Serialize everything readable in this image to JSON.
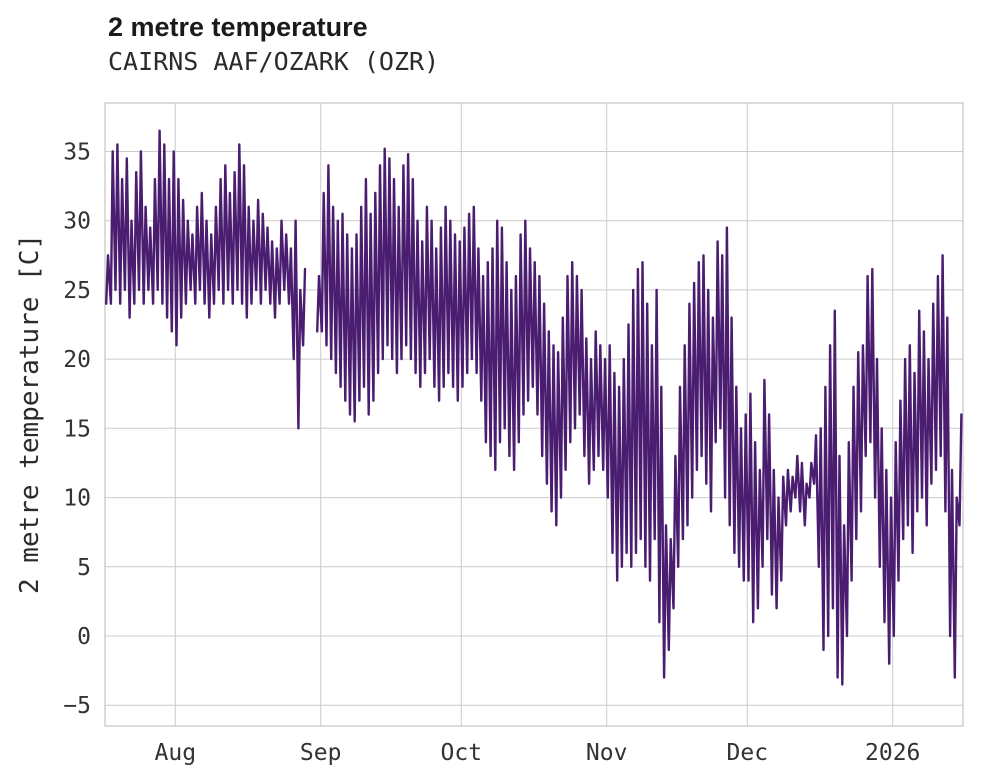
{
  "chart_data": {
    "type": "line",
    "title": "2 metre temperature",
    "subtitle": "CAIRNS AAF/OZARK (OZR)",
    "ylabel": "2 metre temperature [C]",
    "unit": "C",
    "line_color": "#4a1d70",
    "grid": true,
    "legend": "none",
    "ylim": [
      -6.5,
      38.5
    ],
    "yticks": [
      -5,
      0,
      5,
      10,
      15,
      20,
      25,
      30,
      35
    ],
    "ytick_labels": [
      "−5",
      "0",
      "5",
      "10",
      "15",
      "20",
      "25",
      "30",
      "35"
    ],
    "xtick_labels": [
      "Aug",
      "Sep",
      "Oct",
      "Nov",
      "Dec",
      "2026"
    ],
    "xtick_days": [
      15,
      46,
      76,
      107,
      137,
      168
    ],
    "x_domain_days": [
      0,
      183
    ],
    "daily_min_max": [
      [
        24,
        27.5
      ],
      [
        24,
        35
      ],
      [
        25,
        35.5
      ],
      [
        24,
        33
      ],
      [
        25,
        34.5
      ],
      [
        23,
        30
      ],
      [
        24,
        33.5
      ],
      [
        25,
        35
      ],
      [
        24,
        31
      ],
      [
        25,
        29.5
      ],
      [
        24,
        33
      ],
      [
        25,
        36.5
      ],
      [
        24,
        35.5
      ],
      [
        23,
        33
      ],
      [
        22,
        35
      ],
      [
        21,
        33
      ],
      [
        23,
        31.5
      ],
      [
        24,
        30
      ],
      [
        25,
        29
      ],
      [
        24,
        31
      ],
      [
        25,
        32
      ],
      [
        24,
        30
      ],
      [
        23,
        29
      ],
      [
        24,
        31
      ],
      [
        25,
        33
      ],
      [
        24,
        34
      ],
      [
        25,
        32
      ],
      [
        24,
        33.5
      ],
      [
        25,
        35.5
      ],
      [
        24,
        34
      ],
      [
        23,
        31
      ],
      [
        24,
        30
      ],
      [
        25,
        31.5
      ],
      [
        24,
        30.5
      ],
      [
        25,
        29.5
      ],
      [
        24,
        28.5
      ],
      [
        23,
        28
      ],
      [
        24,
        30
      ],
      [
        25,
        29
      ],
      [
        24,
        28
      ],
      [
        20,
        30
      ],
      [
        15,
        25
      ],
      [
        21,
        26.5
      ],
      null,
      null,
      [
        22,
        26
      ],
      [
        22,
        32
      ],
      [
        21,
        34
      ],
      [
        20,
        31
      ],
      [
        19,
        30
      ],
      [
        18,
        30.5
      ],
      [
        17,
        29
      ],
      [
        16,
        28
      ],
      [
        15.5,
        29
      ],
      [
        17,
        31
      ],
      [
        18,
        33
      ],
      [
        16,
        30.5
      ],
      [
        17,
        32
      ],
      [
        19,
        34
      ],
      [
        20,
        35.2
      ],
      [
        21,
        34.5
      ],
      [
        20,
        33
      ],
      [
        19,
        31
      ],
      [
        20,
        34
      ],
      [
        21,
        34.8
      ],
      [
        20,
        33
      ],
      [
        19,
        30
      ],
      [
        18,
        28.5
      ],
      [
        19,
        31
      ],
      [
        20,
        30
      ],
      [
        18,
        28
      ],
      [
        17,
        29.5
      ],
      [
        18,
        31
      ],
      [
        19,
        30
      ],
      [
        18,
        29
      ],
      [
        17,
        28.5
      ],
      [
        18,
        29.5
      ],
      [
        19,
        30.5
      ],
      [
        20,
        31
      ],
      [
        19,
        28
      ],
      [
        17,
        26
      ],
      [
        14,
        27
      ],
      [
        13,
        28
      ],
      [
        12,
        30
      ],
      [
        14,
        29.5
      ],
      [
        15,
        27
      ],
      [
        13,
        25
      ],
      [
        12,
        26
      ],
      [
        14,
        29
      ],
      [
        16,
        30
      ],
      [
        17,
        28
      ],
      [
        18,
        27
      ],
      [
        16,
        26
      ],
      [
        13,
        24
      ],
      [
        11,
        22
      ],
      [
        9,
        21
      ],
      [
        8,
        20.5
      ],
      [
        10,
        23
      ],
      [
        12,
        26
      ],
      [
        14,
        27
      ],
      [
        15,
        26
      ],
      [
        16,
        25
      ],
      [
        13,
        21.5
      ],
      [
        11,
        20
      ],
      [
        12,
        22
      ],
      [
        13,
        21
      ],
      [
        12,
        20
      ],
      [
        10,
        21
      ],
      [
        6,
        19
      ],
      [
        4,
        18
      ],
      [
        5,
        20
      ],
      [
        6,
        22.5
      ],
      [
        5,
        25
      ],
      [
        6,
        26.5
      ],
      [
        7,
        27
      ],
      [
        5,
        24
      ],
      [
        4,
        21
      ],
      [
        7,
        25
      ],
      [
        1,
        18
      ],
      [
        -3,
        8
      ],
      [
        -1,
        7
      ],
      [
        2,
        13
      ],
      [
        5,
        18
      ],
      [
        7,
        21
      ],
      [
        8,
        24
      ],
      [
        10,
        25.5
      ],
      [
        12,
        27
      ],
      [
        13,
        27.5
      ],
      [
        11,
        25
      ],
      [
        9,
        23
      ],
      [
        14,
        28.5
      ],
      [
        15,
        27.5
      ],
      [
        10,
        29.5
      ],
      [
        8,
        23
      ],
      [
        6,
        18
      ],
      [
        5,
        15
      ],
      [
        4,
        16
      ],
      [
        4,
        17.5
      ],
      [
        1,
        14
      ],
      [
        2,
        12
      ],
      [
        5,
        18.5
      ],
      [
        7,
        16
      ],
      [
        3,
        12
      ],
      [
        2,
        10
      ],
      [
        4,
        11.5
      ],
      [
        8,
        12
      ],
      [
        9,
        11.5
      ],
      [
        10,
        13
      ],
      [
        9,
        12.5
      ],
      [
        8,
        11
      ],
      [
        10,
        12.5
      ],
      [
        11,
        14.5
      ],
      [
        5,
        15
      ],
      [
        -1,
        18
      ],
      [
        0,
        21
      ],
      [
        2,
        23.5
      ],
      [
        -3,
        13
      ],
      [
        -3.5,
        8
      ],
      [
        0,
        14
      ],
      [
        4,
        18
      ],
      [
        7,
        20.5
      ],
      [
        9,
        21
      ],
      [
        13,
        26
      ],
      [
        14,
        26.5
      ],
      [
        10,
        20
      ],
      [
        5,
        15
      ],
      [
        1,
        12
      ],
      [
        -2,
        10
      ],
      [
        0,
        14
      ],
      [
        4,
        17
      ],
      [
        7,
        20
      ],
      [
        8,
        21
      ],
      [
        6,
        19
      ],
      [
        9,
        23.5
      ],
      [
        10,
        22
      ],
      [
        8,
        20
      ],
      [
        11,
        24
      ],
      [
        12,
        26
      ],
      [
        13,
        27.5
      ],
      [
        9,
        23
      ],
      [
        0,
        12
      ],
      [
        -3,
        10
      ],
      [
        8,
        16
      ]
    ]
  }
}
